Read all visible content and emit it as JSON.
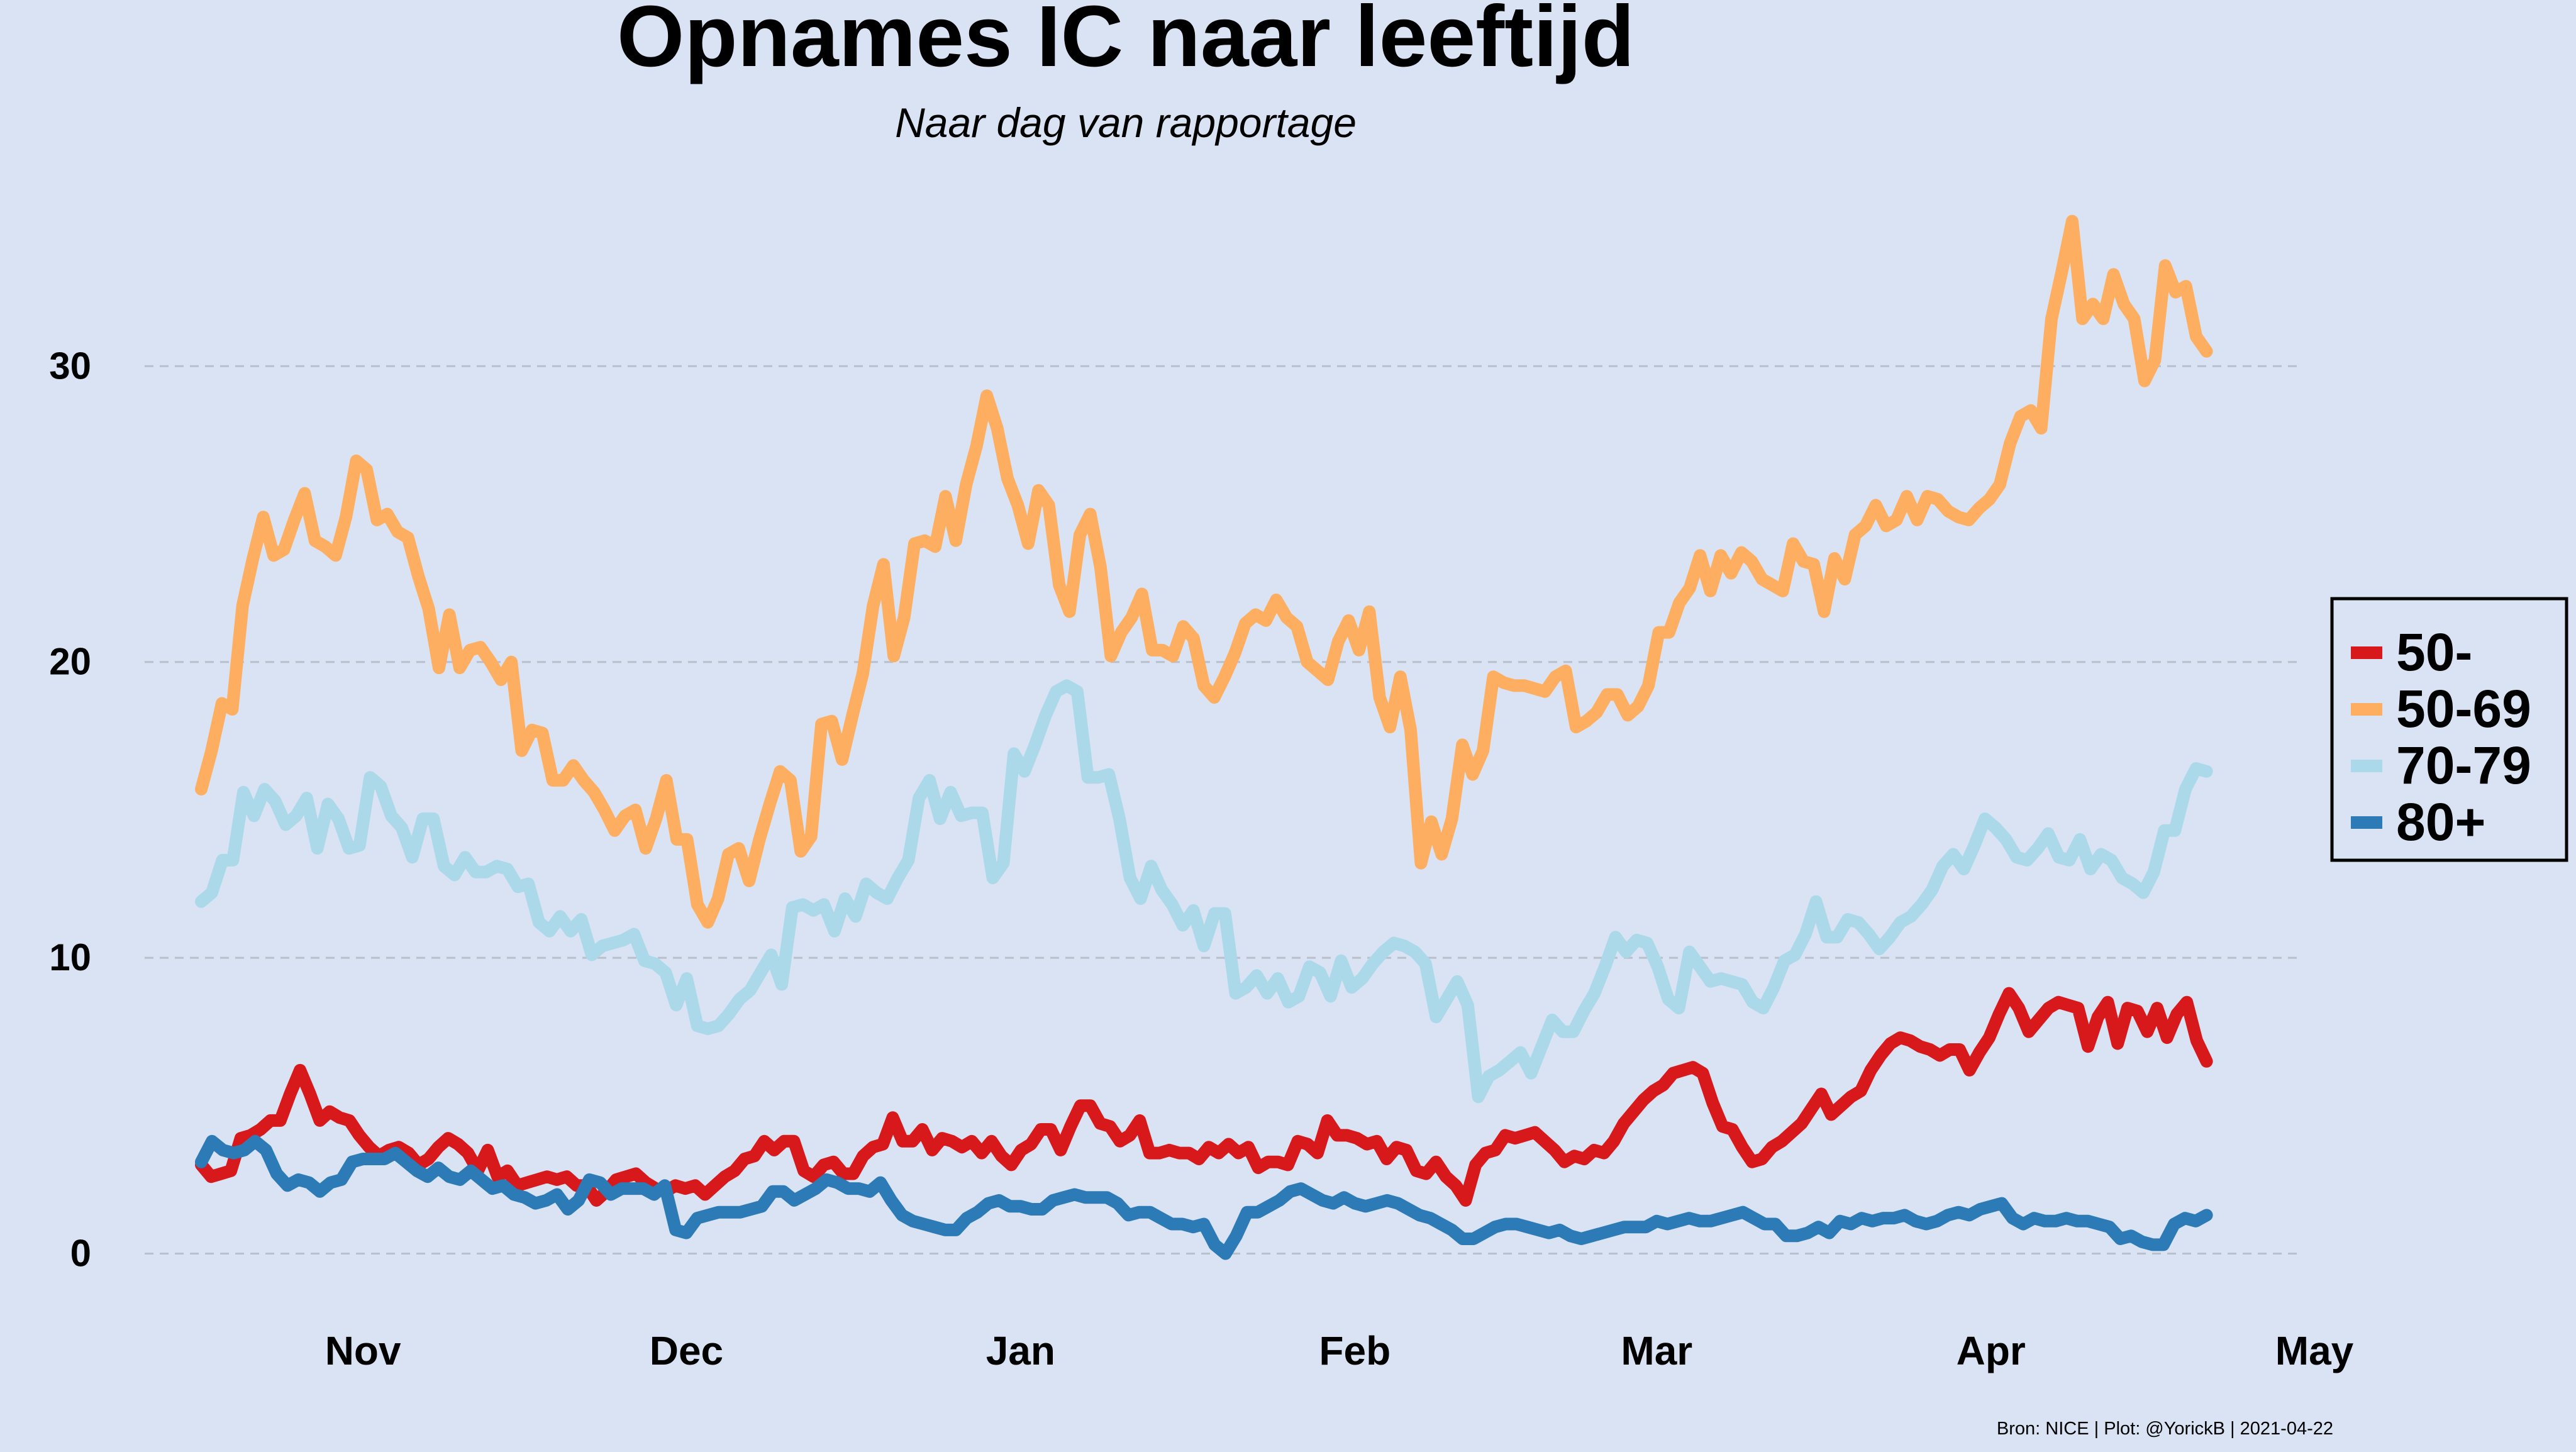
{
  "chart_data": {
    "type": "line",
    "title": "Opnames IC naar leeftijd",
    "subtitle": "Naar dag van rapportage",
    "xlabel": "",
    "ylabel": "",
    "x_start": "2020-10-17",
    "x_end": "2021-04-21",
    "xlim": [
      "2020-10-10",
      "2021-05-01"
    ],
    "ylim": [
      -1.2,
      36
    ],
    "y_ticks": [
      0,
      10,
      20,
      30
    ],
    "x_ticks": [
      {
        "label": "Nov",
        "date": "2020-11-01"
      },
      {
        "label": "Dec",
        "date": "2020-12-01"
      },
      {
        "label": "Jan",
        "date": "2021-01-01"
      },
      {
        "label": "Feb",
        "date": "2021-02-01"
      },
      {
        "label": "Mar",
        "date": "2021-03-01"
      },
      {
        "label": "Apr",
        "date": "2021-04-01"
      },
      {
        "label": "May",
        "date": "2021-05-01"
      }
    ],
    "grid": "horizontal dashed",
    "legend_position": "right",
    "caption": "Bron: NICE | Plot: @YorickB  |  2021-04-22",
    "series": [
      {
        "name": "50-",
        "color": "#d7191c",
        "values": [
          3.0,
          2.6,
          2.7,
          2.8,
          3.9,
          4.0,
          4.2,
          4.5,
          4.5,
          5.4,
          6.2,
          5.4,
          4.5,
          4.8,
          4.6,
          4.5,
          4.0,
          3.6,
          3.3,
          3.5,
          3.6,
          3.4,
          3.0,
          3.2,
          3.6,
          3.9,
          3.7,
          3.4,
          2.8,
          3.5,
          2.6,
          2.8,
          2.3,
          2.4,
          2.5,
          2.6,
          2.5,
          2.6,
          2.3,
          2.3,
          1.8,
          2.1,
          2.5,
          2.6,
          2.7,
          2.4,
          2.2,
          2.1,
          2.3,
          2.2,
          2.3,
          2.0,
          2.3,
          2.6,
          2.8,
          3.2,
          3.3,
          3.8,
          3.5,
          3.8,
          3.8,
          2.8,
          2.6,
          3.0,
          3.1,
          2.7,
          2.7,
          3.3,
          3.6,
          3.7,
          4.6,
          3.8,
          3.8,
          4.2,
          3.5,
          3.9,
          3.8,
          3.6,
          3.8,
          3.4,
          3.8,
          3.3,
          3.0,
          3.5,
          3.7,
          4.2,
          4.2,
          3.5,
          4.3,
          5.0,
          5.0,
          4.4,
          4.3,
          3.8,
          4.0,
          4.5,
          3.4,
          3.4,
          3.5,
          3.4,
          3.4,
          3.2,
          3.6,
          3.4,
          3.7,
          3.4,
          3.6,
          2.9,
          3.1,
          3.1,
          3.0,
          3.8,
          3.7,
          3.4,
          4.5,
          4.0,
          4.0,
          3.9,
          3.7,
          3.8,
          3.2,
          3.6,
          3.5,
          2.8,
          2.7,
          3.1,
          2.6,
          2.3,
          1.8,
          3.0,
          3.4,
          3.5,
          4.0,
          3.9,
          4.0,
          4.1,
          3.8,
          3.5,
          3.1,
          3.3,
          3.2,
          3.5,
          3.4,
          3.8,
          4.4,
          4.8,
          5.2,
          5.5,
          5.7,
          6.1,
          6.2,
          6.3,
          6.1,
          5.1,
          4.3,
          4.2,
          3.6,
          3.1,
          3.2,
          3.6,
          3.8,
          4.1,
          4.4,
          4.9,
          5.4,
          4.7,
          5.0,
          5.3,
          5.5,
          6.2,
          6.7,
          7.1,
          7.3,
          7.2,
          7.0,
          6.9,
          6.7,
          6.9,
          6.9,
          6.2,
          6.8,
          7.3,
          8.1,
          8.8,
          8.3,
          7.5,
          7.9,
          8.3,
          8.5,
          8.4,
          8.3,
          7.0,
          8.0,
          8.5,
          7.1,
          8.3,
          8.2,
          7.5,
          8.3,
          7.3,
          8.1,
          8.5,
          7.2,
          6.5
        ]
      },
      {
        "name": "50-69",
        "color": "#fdae61",
        "values": [
          15.7,
          17.0,
          18.6,
          18.4,
          21.9,
          23.5,
          24.9,
          23.6,
          23.8,
          24.8,
          25.7,
          24.1,
          23.9,
          23.6,
          24.9,
          26.8,
          26.5,
          24.8,
          25.0,
          24.4,
          24.2,
          22.9,
          21.8,
          19.8,
          21.6,
          19.8,
          20.4,
          20.5,
          20.0,
          19.4,
          20.0,
          17.0,
          17.7,
          17.6,
          16.0,
          16.0,
          16.5,
          16.0,
          15.6,
          15.0,
          14.3,
          14.8,
          15.0,
          13.7,
          14.7,
          16.0,
          14.0,
          14.0,
          11.8,
          11.2,
          12.0,
          13.5,
          13.7,
          12.6,
          14.0,
          15.2,
          16.3,
          16.0,
          13.6,
          14.1,
          17.9,
          18.0,
          16.7,
          18.2,
          19.6,
          21.9,
          23.3,
          20.2,
          21.5,
          24.0,
          24.1,
          23.9,
          25.6,
          24.1,
          26.0,
          27.3,
          29.0,
          27.9,
          26.2,
          25.3,
          24.0,
          25.8,
          25.3,
          22.6,
          21.7,
          24.3,
          25.0,
          23.2,
          20.2,
          21.0,
          21.5,
          22.3,
          20.4,
          20.4,
          20.2,
          21.2,
          20.8,
          19.2,
          18.8,
          19.5,
          20.3,
          21.3,
          21.6,
          21.4,
          22.1,
          21.5,
          21.2,
          20.0,
          19.7,
          19.4,
          20.7,
          21.4,
          20.4,
          21.7,
          18.8,
          17.8,
          19.5,
          17.7,
          13.2,
          14.6,
          13.5,
          14.7,
          17.2,
          16.2,
          17.0,
          19.5,
          19.3,
          19.2,
          19.2,
          19.1,
          19.0,
          19.5,
          19.7,
          17.8,
          18.0,
          18.3,
          18.9,
          18.9,
          18.2,
          18.5,
          19.2,
          21.0,
          21.0,
          22.0,
          22.5,
          23.6,
          22.4,
          23.6,
          23.0,
          23.7,
          23.4,
          22.8,
          22.6,
          22.4,
          24.0,
          23.4,
          23.3,
          21.7,
          23.5,
          22.8,
          24.3,
          24.6,
          25.3,
          24.6,
          24.8,
          25.6,
          24.8,
          25.6,
          25.5,
          25.1,
          24.9,
          24.8,
          25.2,
          25.5,
          26.0,
          27.4,
          28.3,
          28.5,
          27.9,
          31.6,
          33.2,
          34.9,
          31.6,
          32.1,
          31.6,
          33.1,
          32.1,
          31.6,
          29.5,
          30.2,
          33.4,
          32.5,
          32.7,
          31.0,
          30.5
        ]
      },
      {
        "name": "70-79",
        "color": "#abd9e9",
        "values": [
          11.9,
          12.2,
          13.3,
          13.3,
          15.6,
          14.8,
          15.7,
          15.3,
          14.5,
          14.8,
          15.4,
          13.7,
          15.2,
          14.7,
          13.7,
          13.8,
          16.1,
          15.8,
          14.8,
          14.4,
          13.4,
          14.7,
          14.7,
          13.1,
          12.8,
          13.4,
          12.9,
          12.9,
          13.1,
          13.0,
          12.4,
          12.5,
          11.2,
          10.9,
          11.4,
          10.9,
          11.3,
          10.1,
          10.4,
          10.5,
          10.6,
          10.8,
          9.9,
          9.8,
          9.5,
          8.4,
          9.3,
          7.7,
          7.6,
          7.7,
          8.1,
          8.6,
          8.9,
          9.5,
          10.1,
          9.1,
          11.7,
          11.8,
          11.6,
          11.8,
          10.9,
          12.0,
          11.4,
          12.5,
          12.2,
          12.0,
          12.7,
          13.3,
          15.4,
          16.0,
          14.7,
          15.6,
          14.8,
          14.9,
          14.9,
          12.7,
          13.2,
          16.9,
          16.3,
          17.2,
          18.2,
          19.0,
          19.2,
          19.0,
          16.1,
          16.1,
          16.2,
          14.7,
          12.7,
          12.0,
          13.1,
          12.3,
          11.8,
          11.1,
          11.6,
          10.4,
          11.5,
          11.5,
          8.8,
          9.0,
          9.4,
          8.8,
          9.3,
          8.5,
          8.7,
          9.7,
          9.5,
          8.7,
          9.9,
          9.0,
          9.3,
          9.8,
          10.2,
          10.5,
          10.4,
          10.2,
          9.8,
          8.0,
          8.6,
          9.2,
          8.4,
          5.3,
          6.0,
          6.2,
          6.5,
          6.8,
          6.1,
          7.0,
          7.9,
          7.5,
          7.5,
          8.2,
          8.8,
          9.7,
          10.7,
          10.2,
          10.6,
          10.5,
          9.7,
          8.6,
          8.3,
          10.2,
          9.7,
          9.2,
          9.3,
          9.2,
          9.1,
          8.5,
          8.3,
          9.0,
          9.9,
          10.1,
          10.8,
          11.9,
          10.7,
          10.7,
          11.3,
          11.2,
          10.8,
          10.3,
          10.7,
          11.2,
          11.4,
          11.8,
          12.3,
          13.1,
          13.5,
          13.0,
          13.8,
          14.7,
          14.4,
          14.0,
          13.4,
          13.3,
          13.7,
          14.2,
          13.4,
          13.3,
          14.0,
          13.0,
          13.5,
          13.3,
          12.7,
          12.5,
          12.2,
          12.9,
          14.3,
          14.3,
          15.7,
          16.4,
          16.3
        ]
      },
      {
        "name": "80+",
        "color": "#2c7bb6",
        "values": [
          3.1,
          3.8,
          3.5,
          3.4,
          3.5,
          3.8,
          3.5,
          2.7,
          2.3,
          2.5,
          2.4,
          2.1,
          2.4,
          2.5,
          3.1,
          3.2,
          3.2,
          3.2,
          3.4,
          3.1,
          2.8,
          2.6,
          2.9,
          2.6,
          2.5,
          2.8,
          2.5,
          2.2,
          2.3,
          2.0,
          1.9,
          1.7,
          1.8,
          2.0,
          1.5,
          1.8,
          2.5,
          2.4,
          2.0,
          2.2,
          2.2,
          2.2,
          2.0,
          2.3,
          0.8,
          0.7,
          1.2,
          1.3,
          1.4,
          1.4,
          1.4,
          1.5,
          1.6,
          2.1,
          2.1,
          1.8,
          2.0,
          2.2,
          2.5,
          2.4,
          2.2,
          2.2,
          2.1,
          2.4,
          1.8,
          1.3,
          1.1,
          1.0,
          0.9,
          0.8,
          0.8,
          1.2,
          1.4,
          1.7,
          1.8,
          1.6,
          1.6,
          1.5,
          1.5,
          1.8,
          1.9,
          2.0,
          1.9,
          1.9,
          1.9,
          1.7,
          1.3,
          1.4,
          1.4,
          1.2,
          1.0,
          1.0,
          0.9,
          1.0,
          0.3,
          0.0,
          0.6,
          1.4,
          1.4,
          1.6,
          1.8,
          2.1,
          2.2,
          2.0,
          1.8,
          1.7,
          1.9,
          1.7,
          1.6,
          1.7,
          1.8,
          1.7,
          1.5,
          1.3,
          1.2,
          1.0,
          0.8,
          0.5,
          0.5,
          0.7,
          0.9,
          1.0,
          1.0,
          0.9,
          0.8,
          0.7,
          0.8,
          0.6,
          0.5,
          0.6,
          0.7,
          0.8,
          0.9,
          0.9,
          0.9,
          1.1,
          1.0,
          1.1,
          1.2,
          1.1,
          1.1,
          1.2,
          1.3,
          1.4,
          1.2,
          1.0,
          1.0,
          0.6,
          0.6,
          0.7,
          0.9,
          0.7,
          1.1,
          1.0,
          1.2,
          1.1,
          1.2,
          1.2,
          1.3,
          1.1,
          1.0,
          1.1,
          1.3,
          1.4,
          1.3,
          1.5,
          1.6,
          1.7,
          1.2,
          1.0,
          1.2,
          1.1,
          1.1,
          1.2,
          1.1,
          1.1,
          1.0,
          0.9,
          0.5,
          0.6,
          0.4,
          0.3,
          0.3,
          1.0,
          1.2,
          1.1,
          1.3
        ]
      }
    ]
  }
}
